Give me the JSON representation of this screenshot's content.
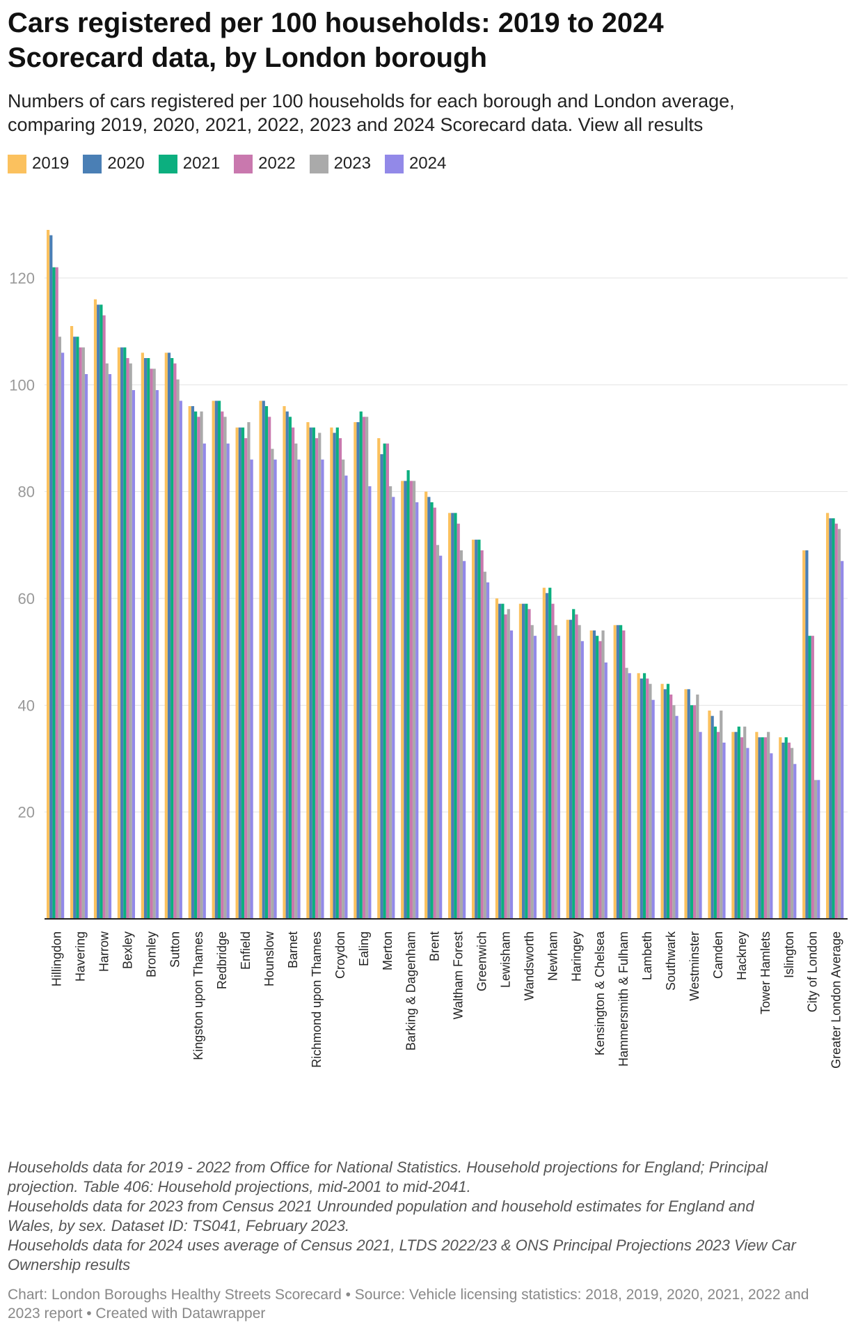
{
  "header": {
    "title_line1": "Cars registered per 100 households: 2019 to 2024",
    "title_line2": "Scorecard data, by London borough",
    "subtitle_line1": "Numbers of cars registered per 100 households for each borough and London average,",
    "subtitle_line2": "comparing 2019, 2020, 2021, 2022, 2023 and 2024 Scorecard data. View all results"
  },
  "footer": {
    "notes": [
      "Households data for 2019 - 2022 from Office for National Statistics. Household projections for England; Principal",
      "projection. Table 406: Household projections, mid-2001 to mid-2041.",
      "Households data for 2023 from Census 2021 Unrounded population and household estimates for England and",
      "Wales, by sex. Dataset ID: TS041, February 2023.",
      "Households data for 2024 uses average of Census 2021, LTDS 2022/23 & ONS Principal Projections 2023 View Car",
      "Ownership results"
    ],
    "credit_line1": "Chart: London Boroughs Healthy Streets Scorecard • Source: Vehicle licensing statistics: 2018, 2019, 2020, 2021, 2022 and",
    "credit_line2": "2023 report • Created with Datawrapper"
  },
  "chart_data": {
    "type": "bar",
    "title": "Cars registered per 100 households: 2019 to 2024 Scorecard data, by London borough",
    "subtitle": "Numbers of cars registered per 100 households for each borough and London average, comparing 2019, 2020, 2021, 2022, 2023 and 2024 Scorecard data. View all results",
    "xlabel": "",
    "ylabel": "",
    "ylim": [
      0,
      129
    ],
    "yticks": [
      20,
      40,
      60,
      80,
      100,
      120
    ],
    "grid": true,
    "legend_position": "top-left",
    "categories": [
      "Hillingdon",
      "Havering",
      "Harrow",
      "Bexley",
      "Bromley",
      "Sutton",
      "Kingston upon Thames",
      "Redbridge",
      "Enfield",
      "Hounslow",
      "Barnet",
      "Richmond upon Thames",
      "Croydon",
      "Ealing",
      "Merton",
      "Barking & Dagenham",
      "Brent",
      "Waltham Forest",
      "Greenwich",
      "Lewisham",
      "Wandsworth",
      "Newham",
      "Haringey",
      "Kensington & Chelsea",
      "Hammersmith & Fulham",
      "Lambeth",
      "Southwark",
      "Westminster",
      "Camden",
      "Hackney",
      "Tower Hamlets",
      "Islington",
      "City of London",
      "Greater London Average"
    ],
    "series": [
      {
        "name": "2019",
        "color": "#fbc15e",
        "values": [
          129,
          111,
          116,
          107,
          106,
          106,
          96,
          97,
          92,
          97,
          96,
          93,
          92,
          93,
          90,
          82,
          80,
          76,
          71,
          60,
          59,
          62,
          56,
          54,
          55,
          46,
          44,
          43,
          39,
          35,
          35,
          34,
          69,
          76
        ]
      },
      {
        "name": "2020",
        "color": "#4a7fb5",
        "values": [
          128,
          109,
          115,
          107,
          105,
          106,
          96,
          97,
          92,
          97,
          95,
          92,
          91,
          93,
          87,
          82,
          79,
          76,
          71,
          59,
          59,
          61,
          56,
          54,
          55,
          45,
          43,
          43,
          38,
          35,
          34,
          33,
          69,
          75
        ]
      },
      {
        "name": "2021",
        "color": "#0caf7f",
        "values": [
          122,
          109,
          115,
          107,
          105,
          105,
          95,
          97,
          92,
          96,
          94,
          92,
          92,
          95,
          89,
          84,
          78,
          76,
          71,
          59,
          59,
          62,
          58,
          53,
          55,
          46,
          44,
          40,
          36,
          36,
          34,
          34,
          53,
          75
        ]
      },
      {
        "name": "2022",
        "color": "#c978ae",
        "values": [
          122,
          107,
          113,
          105,
          103,
          104,
          94,
          95,
          90,
          94,
          92,
          90,
          90,
          94,
          89,
          82,
          77,
          74,
          69,
          57,
          58,
          59,
          57,
          52,
          54,
          45,
          42,
          40,
          35,
          34,
          34,
          33,
          53,
          74
        ]
      },
      {
        "name": "2023",
        "color": "#aaaaaa",
        "values": [
          109,
          107,
          104,
          104,
          103,
          101,
          95,
          94,
          93,
          88,
          89,
          91,
          86,
          94,
          81,
          82,
          70,
          69,
          65,
          58,
          55,
          55,
          55,
          54,
          47,
          44,
          40,
          42,
          39,
          36,
          35,
          32,
          26,
          73
        ]
      },
      {
        "name": "2024",
        "color": "#9289e8",
        "values": [
          106,
          102,
          102,
          99,
          99,
          97,
          89,
          89,
          86,
          86,
          86,
          86,
          83,
          81,
          79,
          78,
          68,
          67,
          63,
          54,
          53,
          53,
          52,
          48,
          46,
          41,
          38,
          35,
          33,
          32,
          31,
          29,
          26,
          67
        ]
      }
    ]
  }
}
